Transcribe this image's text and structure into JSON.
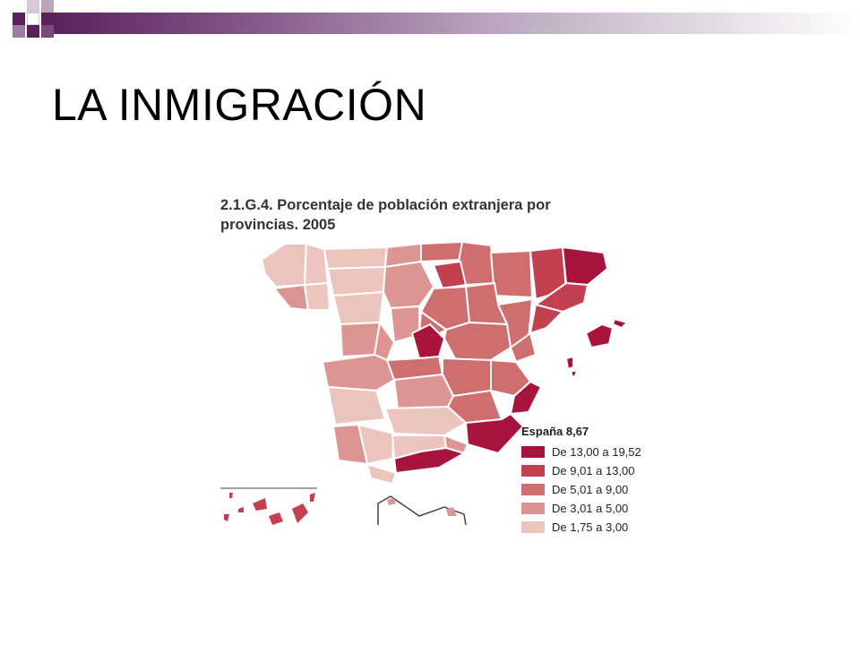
{
  "slide": {
    "title": "LA INMIGRACIÓN"
  },
  "map": {
    "title_line1": "2.1.G.4. Porcentaje de población extranjera por",
    "title_line2": "provincias. 2005",
    "total_label": "España 8,67",
    "legend": [
      {
        "label": "De 13,00 a 19,52",
        "color": "#a8143d"
      },
      {
        "label": "De 9,01 a 13,00",
        "color": "#c2404f"
      },
      {
        "label": "De 5,01 a 9,00",
        "color": "#cf6e6f"
      },
      {
        "label": "De 3,01 a 5,00",
        "color": "#dc9592"
      },
      {
        "label": "De 1,75 a 3,00",
        "color": "#ecc4be"
      }
    ]
  },
  "colors": {
    "accent_purple": "#5a1f5c",
    "border": "#ffffff"
  }
}
